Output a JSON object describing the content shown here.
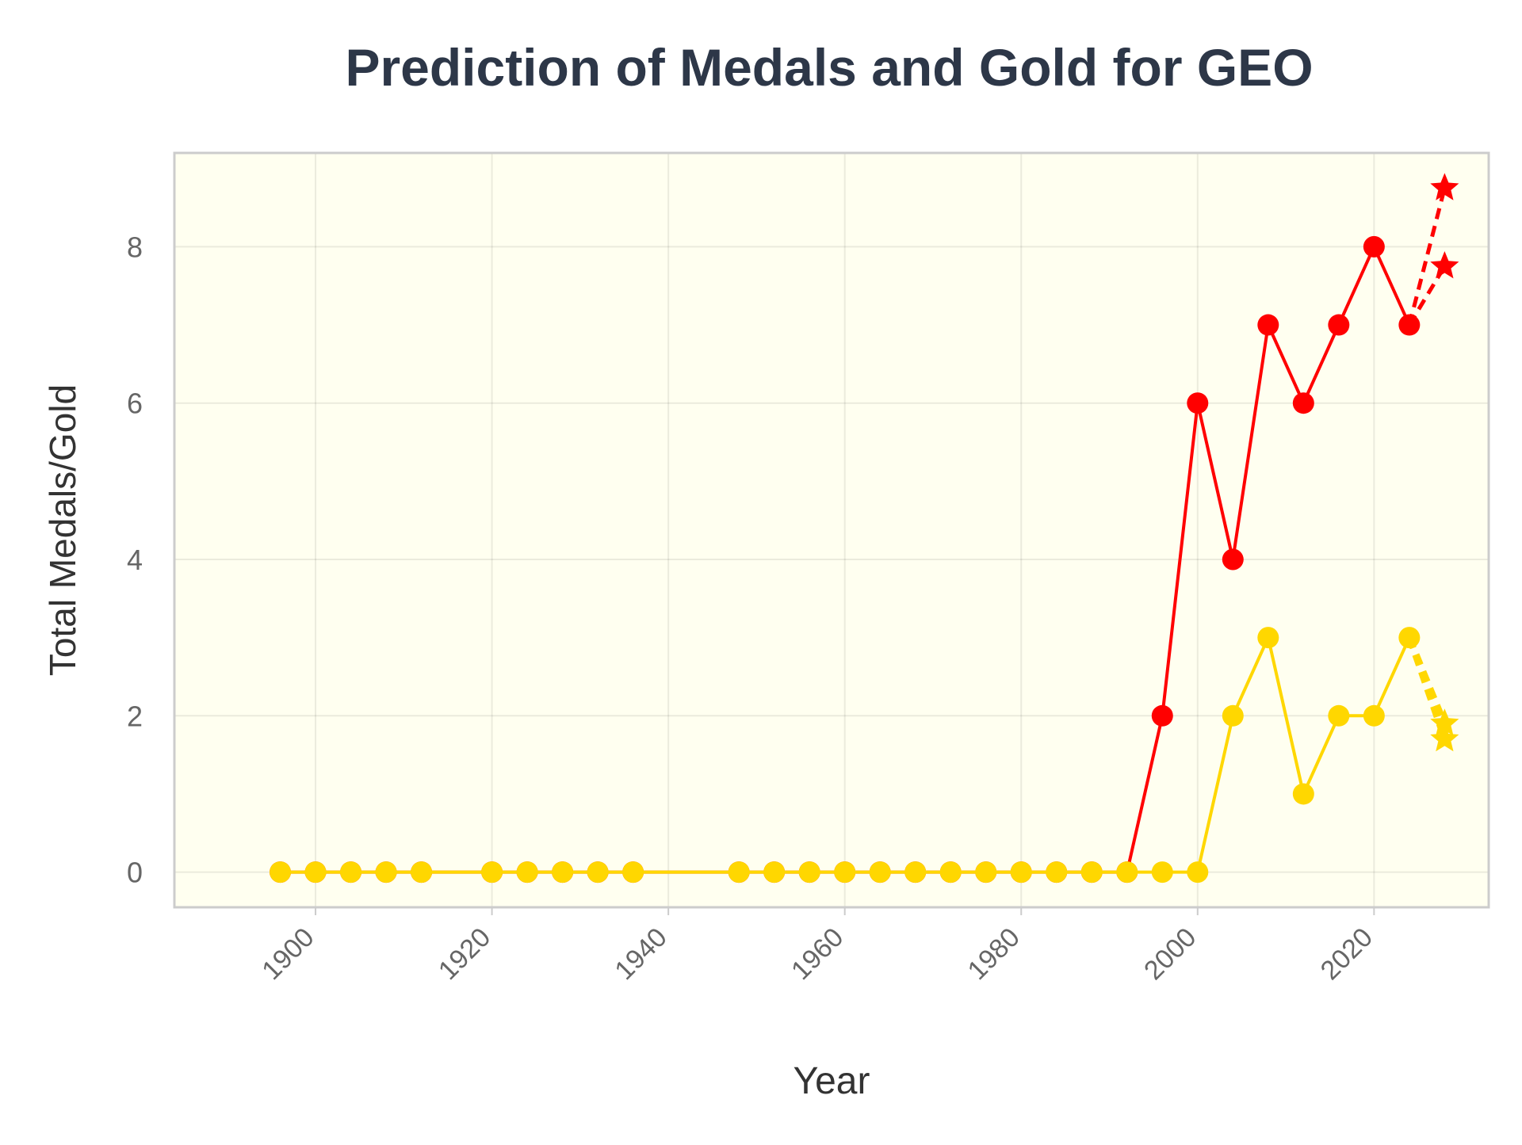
{
  "chart_data": {
    "type": "line",
    "title": "Prediction of Medals and Gold for GEO",
    "xlabel": "Year",
    "ylabel": "Total Medals/Gold",
    "xlim": [
      1884,
      2033
    ],
    "ylim": [
      -0.45,
      9.2
    ],
    "x_ticks": [
      1900,
      1920,
      1940,
      1960,
      1980,
      2000,
      2020
    ],
    "y_ticks": [
      0,
      2,
      4,
      6,
      8
    ],
    "grid": true,
    "legend": "none",
    "colors": {
      "total": "#ff0000",
      "gold": "#ffd700",
      "plot_bg": "#fffff0",
      "title": "#2d3748",
      "tick": "#666666",
      "label": "#333333",
      "frame": "#cccccc"
    },
    "series": [
      {
        "key": "total",
        "x": [
          1896,
          1900,
          1904,
          1908,
          1912,
          1920,
          1924,
          1928,
          1932,
          1936,
          1948,
          1952,
          1956,
          1960,
          1964,
          1968,
          1972,
          1976,
          1980,
          1984,
          1988,
          1992,
          1996,
          2000,
          2004,
          2008,
          2012,
          2016,
          2020,
          2024
        ],
        "y": [
          0,
          0,
          0,
          0,
          0,
          0,
          0,
          0,
          0,
          0,
          0,
          0,
          0,
          0,
          0,
          0,
          0,
          0,
          0,
          0,
          0,
          0,
          2,
          6,
          4,
          7,
          6,
          7,
          8,
          7
        ]
      },
      {
        "key": "gold",
        "x": [
          1896,
          1900,
          1904,
          1908,
          1912,
          1920,
          1924,
          1928,
          1932,
          1936,
          1948,
          1952,
          1956,
          1960,
          1964,
          1968,
          1972,
          1976,
          1980,
          1984,
          1988,
          1992,
          1996,
          2000,
          2004,
          2008,
          2012,
          2016,
          2020,
          2024
        ],
        "y": [
          0,
          0,
          0,
          0,
          0,
          0,
          0,
          0,
          0,
          0,
          0,
          0,
          0,
          0,
          0,
          0,
          0,
          0,
          0,
          0,
          0,
          0,
          0,
          0,
          2,
          3,
          1,
          2,
          2,
          3
        ]
      }
    ],
    "predictions": [
      {
        "key": "total",
        "from": [
          2024,
          7
        ],
        "points": [
          [
            2028,
            8.75
          ],
          [
            2028,
            7.75
          ]
        ]
      },
      {
        "key": "gold",
        "from": [
          2024,
          3
        ],
        "points": [
          [
            2028,
            1.9
          ],
          [
            2028,
            1.7
          ]
        ]
      }
    ]
  }
}
